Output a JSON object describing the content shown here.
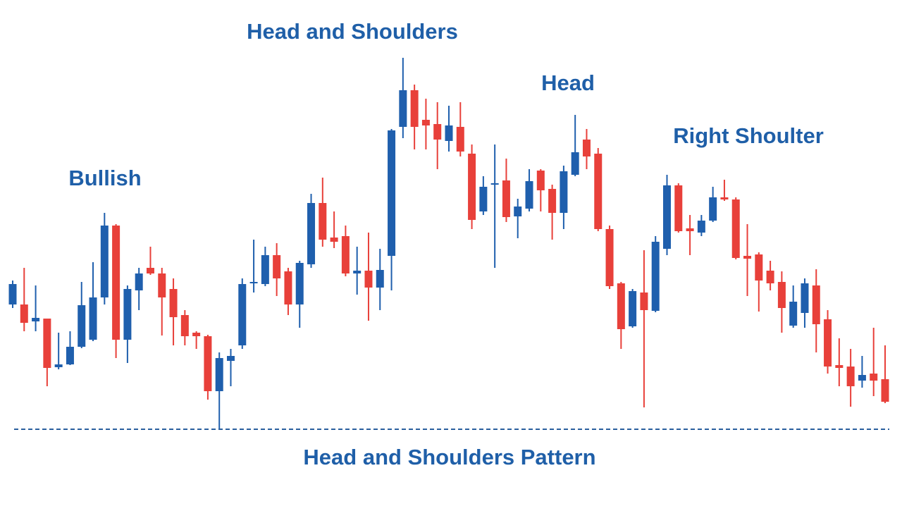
{
  "chart_data": {
    "type": "candlestick",
    "title": "Head and Shoulders",
    "caption": "Head and Shoulders Pattern",
    "annotations": [
      "Bullish",
      "Head",
      "Right Shoulter"
    ],
    "up_color": "#1f5fad",
    "down_color": "#e8403a",
    "ylim": [
      0,
      550
    ],
    "neckline": 11,
    "open": [
      188,
      188,
      164,
      168,
      99,
      103,
      128,
      138,
      198,
      300,
      138,
      208,
      240,
      232,
      210,
      173,
      148,
      143,
      65,
      108,
      130,
      218,
      217,
      258,
      235,
      188,
      245,
      332,
      283,
      285,
      232,
      236,
      212,
      257,
      440,
      492,
      450,
      444,
      420,
      440,
      402,
      320,
      358,
      364,
      313,
      324,
      378,
      352,
      318,
      372,
      422,
      402,
      295,
      218,
      157,
      205,
      179,
      267,
      357,
      296,
      290,
      307,
      340,
      337,
      257,
      259,
      236,
      220,
      158,
      176,
      215,
      167,
      102,
      100,
      80,
      90,
      82
    ],
    "high": [
      222,
      240,
      215,
      168,
      148,
      150,
      220,
      248,
      318,
      302,
      215,
      240,
      270,
      240,
      225,
      180,
      150,
      145,
      120,
      125,
      225,
      280,
      270,
      275,
      240,
      250,
      345,
      368,
      320,
      300,
      270,
      290,
      267,
      437,
      538,
      500,
      480,
      475,
      470,
      475,
      415,
      370,
      415,
      395,
      338,
      380,
      380,
      358,
      385,
      457,
      437,
      410,
      300,
      220,
      210,
      265,
      285,
      372,
      360,
      315,
      315,
      355,
      365,
      340,
      302,
      262,
      250,
      235,
      215,
      225,
      238,
      180,
      140,
      125,
      115,
      155,
      130
    ],
    "low": [
      183,
      150,
      150,
      72,
      96,
      102,
      126,
      136,
      188,
      112,
      105,
      180,
      230,
      144,
      130,
      130,
      125,
      53,
      12,
      72,
      125,
      205,
      214,
      200,
      173,
      155,
      240,
      270,
      268,
      228,
      202,
      165,
      180,
      208,
      424,
      408,
      408,
      380,
      405,
      398,
      295,
      315,
      240,
      305,
      282,
      320,
      320,
      280,
      295,
      370,
      380,
      292,
      210,
      125,
      155,
      42,
      177,
      258,
      290,
      258,
      285,
      305,
      335,
      252,
      200,
      178,
      208,
      148,
      155,
      155,
      120,
      90,
      72,
      43,
      70,
      58,
      48
    ],
    "close": [
      217,
      162,
      169,
      98,
      103,
      128,
      187,
      198,
      300,
      138,
      210,
      232,
      232,
      198,
      170,
      143,
      143,
      65,
      112,
      115,
      217,
      220,
      258,
      225,
      188,
      247,
      332,
      280,
      277,
      232,
      236,
      212,
      237,
      435,
      492,
      440,
      442,
      422,
      442,
      405,
      308,
      355,
      360,
      312,
      327,
      363,
      350,
      318,
      377,
      404,
      398,
      295,
      214,
      153,
      207,
      180,
      277,
      357,
      292,
      292,
      307,
      340,
      337,
      254,
      253,
      222,
      218,
      183,
      192,
      218,
      160,
      100,
      98,
      72,
      88,
      80,
      50
    ]
  }
}
